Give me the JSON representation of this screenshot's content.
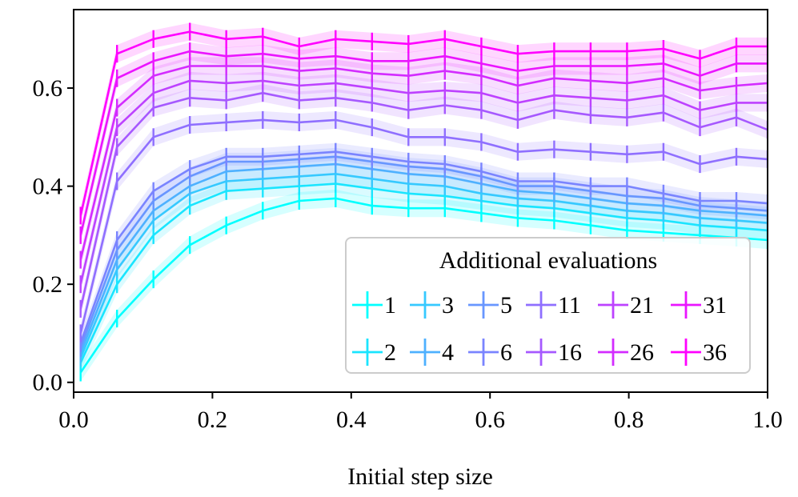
{
  "chart_data": {
    "type": "line",
    "title": "",
    "xlabel": "Initial step size",
    "ylabel": "",
    "xlim": [
      0.0,
      1.0
    ],
    "ylim": [
      -0.02,
      0.76
    ],
    "xticks": [
      0.0,
      0.2,
      0.4,
      0.6,
      0.8,
      1.0
    ],
    "xtick_labels": [
      "0.0",
      "0.2",
      "0.4",
      "0.6",
      "0.8",
      "1.0"
    ],
    "yticks": [
      0.0,
      0.2,
      0.4,
      0.6
    ],
    "ytick_labels": [
      "0.0",
      "0.2",
      "0.4",
      "0.6"
    ],
    "grid": false,
    "error_bars": true,
    "confidence_band": true,
    "legend": {
      "title": "Additional evaluations",
      "position": "bottom-right",
      "ncols": 6
    },
    "x": [
      0.01,
      0.0625,
      0.115,
      0.1675,
      0.22,
      0.2725,
      0.325,
      0.3775,
      0.43,
      0.4825,
      0.535,
      0.5875,
      0.64,
      0.6925,
      0.745,
      0.7975,
      0.85,
      0.9025,
      0.955,
      1.0
    ],
    "series": [
      {
        "name": "1",
        "color": "#00ffff",
        "values": [
          0.02,
          0.13,
          0.21,
          0.28,
          0.32,
          0.35,
          0.37,
          0.375,
          0.36,
          0.355,
          0.355,
          0.345,
          0.335,
          0.33,
          0.32,
          0.31,
          0.305,
          0.3,
          0.295,
          0.29
        ]
      },
      {
        "name": "2",
        "color": "#1ae5ff",
        "values": [
          0.04,
          0.2,
          0.3,
          0.36,
          0.39,
          0.395,
          0.4,
          0.405,
          0.395,
          0.385,
          0.38,
          0.37,
          0.36,
          0.355,
          0.345,
          0.335,
          0.33,
          0.32,
          0.315,
          0.31
        ]
      },
      {
        "name": "3",
        "color": "#36c9ff",
        "values": [
          0.05,
          0.23,
          0.33,
          0.385,
          0.41,
          0.415,
          0.42,
          0.425,
          0.415,
          0.405,
          0.4,
          0.385,
          0.375,
          0.37,
          0.36,
          0.35,
          0.345,
          0.335,
          0.33,
          0.325
        ]
      },
      {
        "name": "4",
        "color": "#4eb1ff",
        "values": [
          0.06,
          0.25,
          0.35,
          0.4,
          0.43,
          0.435,
          0.44,
          0.445,
          0.435,
          0.425,
          0.42,
          0.405,
          0.39,
          0.385,
          0.375,
          0.365,
          0.36,
          0.35,
          0.345,
          0.34
        ]
      },
      {
        "name": "5",
        "color": "#6896ff",
        "values": [
          0.07,
          0.27,
          0.37,
          0.42,
          0.45,
          0.45,
          0.455,
          0.46,
          0.45,
          0.44,
          0.435,
          0.42,
          0.4,
          0.4,
          0.39,
          0.38,
          0.375,
          0.36,
          0.355,
          0.35
        ]
      },
      {
        "name": "6",
        "color": "#7a84ff",
        "values": [
          0.08,
          0.29,
          0.39,
          0.435,
          0.46,
          0.46,
          0.465,
          0.47,
          0.46,
          0.45,
          0.445,
          0.43,
          0.41,
          0.41,
          0.4,
          0.4,
          0.385,
          0.37,
          0.37,
          0.365
        ]
      },
      {
        "name": "11",
        "color": "#8f6fff",
        "values": [
          0.1,
          0.41,
          0.5,
          0.525,
          0.53,
          0.535,
          0.53,
          0.535,
          0.52,
          0.5,
          0.5,
          0.49,
          0.47,
          0.475,
          0.47,
          0.465,
          0.47,
          0.445,
          0.46,
          0.455
        ]
      },
      {
        "name": "16",
        "color": "#a659ff",
        "values": [
          0.15,
          0.48,
          0.56,
          0.58,
          0.575,
          0.59,
          0.575,
          0.58,
          0.57,
          0.555,
          0.565,
          0.555,
          0.535,
          0.555,
          0.545,
          0.54,
          0.55,
          0.52,
          0.54,
          0.515
        ]
      },
      {
        "name": "21",
        "color": "#bd42ff",
        "values": [
          0.2,
          0.52,
          0.59,
          0.615,
          0.61,
          0.615,
          0.605,
          0.61,
          0.6,
          0.59,
          0.595,
          0.59,
          0.57,
          0.585,
          0.58,
          0.575,
          0.585,
          0.555,
          0.57,
          0.57
        ]
      },
      {
        "name": "26",
        "color": "#d32cff",
        "values": [
          0.25,
          0.56,
          0.625,
          0.645,
          0.645,
          0.645,
          0.635,
          0.64,
          0.63,
          0.625,
          0.635,
          0.625,
          0.605,
          0.62,
          0.615,
          0.61,
          0.62,
          0.595,
          0.605,
          0.61
        ]
      },
      {
        "name": "31",
        "color": "#ea15ff",
        "values": [
          0.3,
          0.62,
          0.655,
          0.675,
          0.665,
          0.67,
          0.66,
          0.665,
          0.655,
          0.655,
          0.665,
          0.65,
          0.635,
          0.645,
          0.645,
          0.645,
          0.65,
          0.625,
          0.65,
          0.65
        ]
      },
      {
        "name": "36",
        "color": "#ff00ff",
        "values": [
          0.34,
          0.67,
          0.7,
          0.715,
          0.7,
          0.705,
          0.685,
          0.7,
          0.695,
          0.69,
          0.7,
          0.685,
          0.67,
          0.675,
          0.675,
          0.675,
          0.68,
          0.66,
          0.685,
          0.685
        ]
      }
    ],
    "band_halfwidth": 0.018
  }
}
